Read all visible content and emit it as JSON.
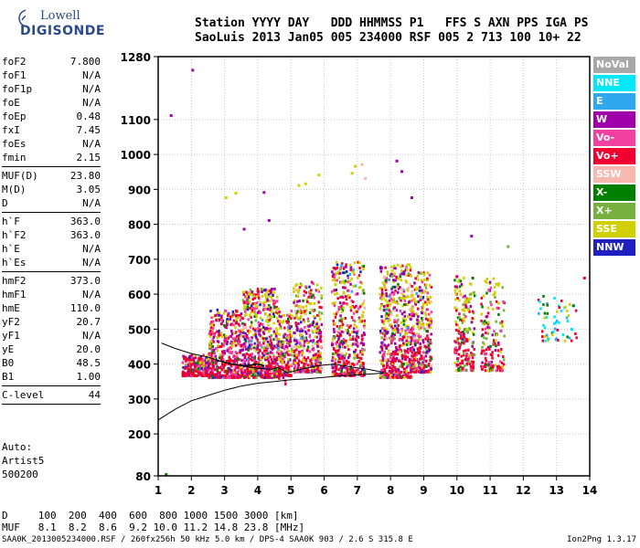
{
  "logo": {
    "line1": "Lowell",
    "line2": "DIGISONDE"
  },
  "header": {
    "labels": "Station YYYY DAY   DDD HHMMSS P1   FFS S AXN PPS IGA PS",
    "values": "SaoLuis 2013 Jan05 005 234000 RSF 005 2 713 100 10+ 22"
  },
  "params": [
    {
      "key": "foF2",
      "value": "7.800"
    },
    {
      "key": "foF1",
      "value": "N/A"
    },
    {
      "key": "foF1p",
      "value": "N/A"
    },
    {
      "key": "foE",
      "value": "N/A"
    },
    {
      "key": "foEp",
      "value": "0.48"
    },
    {
      "key": "fxI",
      "value": "7.45"
    },
    {
      "key": "foEs",
      "value": "N/A"
    },
    {
      "key": "fmin",
      "value": "2.15"
    },
    {
      "sep": true
    },
    {
      "key": "MUF(D)",
      "value": "23.80"
    },
    {
      "key": "M(D)",
      "value": "3.05"
    },
    {
      "key": "D",
      "value": "N/A"
    },
    {
      "sep": true
    },
    {
      "key": "h`F",
      "value": "363.0"
    },
    {
      "key": "h`F2",
      "value": "363.0"
    },
    {
      "key": "h`E",
      "value": "N/A"
    },
    {
      "key": "h`Es",
      "value": "N/A"
    },
    {
      "sep": true
    },
    {
      "key": "hmF2",
      "value": "373.0"
    },
    {
      "key": "hmF1",
      "value": "N/A"
    },
    {
      "key": "hmE",
      "value": "110.0"
    },
    {
      "key": "yF2",
      "value": "20.7"
    },
    {
      "key": "yF1",
      "value": "N/A"
    },
    {
      "key": "yE",
      "value": "20.0"
    },
    {
      "key": "B0",
      "value": "48.5"
    },
    {
      "key": "B1",
      "value": "1.00"
    },
    {
      "sep": true
    },
    {
      "key": "C-level",
      "value": "44"
    },
    {
      "sep": true
    }
  ],
  "auto": {
    "line1": "Auto:",
    "line2": "Artist5",
    "line3": "500200"
  },
  "legend": [
    {
      "label": "NoVal",
      "color": "#a8a8a8"
    },
    {
      "label": "NNE",
      "color": "#00e8f8"
    },
    {
      "label": "E",
      "color": "#30a8f0"
    },
    {
      "label": "W",
      "color": "#a000a8"
    },
    {
      "label": "Vo-",
      "color": "#f040a0"
    },
    {
      "label": "Vo+",
      "color": "#f00030"
    },
    {
      "label": "SSW",
      "color": "#f8b8b0"
    },
    {
      "label": "X-",
      "color": "#008000"
    },
    {
      "label": "X+",
      "color": "#78b040"
    },
    {
      "label": "SSE",
      "color": "#d0d000"
    },
    {
      "label": "NNW",
      "color": "#2020c0"
    }
  ],
  "dtable": {
    "row1": "D     100  200  400  600  800 1000 1500 3000 [km]",
    "row2": "MUF   8.1  8.2  8.6  9.2 10.0 11.2 14.8 23.8 [MHz]"
  },
  "footer": "SAA0K_2013005234000.RSF / 260fx256h 50 kHz 5.0 km / DPS-4 SAA0K 903 / 2.6 S 315.8 E",
  "version": "Ion2Png 1.3.17",
  "chart_data": {
    "type": "scatter",
    "x_ticks": [
      1,
      2,
      3,
      4,
      5,
      6,
      7,
      8,
      9,
      10,
      11,
      12,
      13,
      14
    ],
    "y_ticks": [
      80,
      200,
      300,
      400,
      500,
      600,
      700,
      800,
      900,
      1000,
      1100,
      1280
    ],
    "xlim": [
      1,
      14
    ],
    "ylim": [
      80,
      1280
    ],
    "x_unit": "MHz",
    "y_unit": "km",
    "grid": true,
    "legend_position": "right",
    "clusters": [
      {
        "f": [
          1.7,
          2.5
        ],
        "h": [
          370,
          430
        ],
        "n": 260,
        "mix": "low"
      },
      {
        "f": [
          2.5,
          3.5
        ],
        "h": [
          365,
          560
        ],
        "n": 420,
        "mix": "low"
      },
      {
        "f": [
          3.5,
          4.6
        ],
        "h": [
          365,
          620
        ],
        "n": 620,
        "mix": "main"
      },
      {
        "f": [
          4.6,
          5.0
        ],
        "h": [
          370,
          560
        ],
        "n": 160,
        "mix": "main"
      },
      {
        "f": [
          5.05,
          5.9
        ],
        "h": [
          380,
          640
        ],
        "n": 360,
        "mix": "main"
      },
      {
        "f": [
          6.2,
          7.2
        ],
        "h": [
          370,
          700
        ],
        "n": 460,
        "mix": "main"
      },
      {
        "f": [
          7.65,
          8.6
        ],
        "h": [
          365,
          690
        ],
        "n": 520,
        "mix": "main"
      },
      {
        "f": [
          8.6,
          9.2
        ],
        "h": [
          380,
          670
        ],
        "n": 320,
        "mix": "main"
      },
      {
        "f": [
          9.9,
          10.5
        ],
        "h": [
          385,
          660
        ],
        "n": 200,
        "mix": "high"
      },
      {
        "f": [
          10.7,
          11.4
        ],
        "h": [
          385,
          650
        ],
        "n": 160,
        "mix": "high"
      },
      {
        "f": [
          12.3,
          13.6
        ],
        "h": [
          470,
          600
        ],
        "n": 60,
        "mix": "far"
      },
      {
        "f": [
          4.6,
          4.9
        ],
        "h": [
          330,
          520
        ],
        "n": 12,
        "mix": "main"
      }
    ],
    "sparse_echoes": [
      {
        "f": 1.35,
        "h": 1115,
        "c": "#a000a8"
      },
      {
        "f": 2.0,
        "h": 1245,
        "c": "#a000a8"
      },
      {
        "f": 1.2,
        "h": 88,
        "c": "#008000"
      },
      {
        "f": 3.0,
        "h": 880,
        "c": "#d0d000"
      },
      {
        "f": 3.3,
        "h": 893,
        "c": "#d0d000"
      },
      {
        "f": 3.55,
        "h": 790,
        "c": "#a000a8"
      },
      {
        "f": 4.15,
        "h": 895,
        "c": "#a000a8"
      },
      {
        "f": 4.3,
        "h": 815,
        "c": "#a000a8"
      },
      {
        "f": 5.2,
        "h": 915,
        "c": "#d0d000"
      },
      {
        "f": 5.4,
        "h": 920,
        "c": "#d0d000"
      },
      {
        "f": 5.8,
        "h": 945,
        "c": "#d0d000"
      },
      {
        "f": 6.8,
        "h": 950,
        "c": "#d0d000"
      },
      {
        "f": 6.9,
        "h": 970,
        "c": "#d0d000"
      },
      {
        "f": 7.1,
        "h": 975,
        "c": "#f8b8b0"
      },
      {
        "f": 8.15,
        "h": 985,
        "c": "#a000a8"
      },
      {
        "f": 8.3,
        "h": 955,
        "c": "#a000a8"
      },
      {
        "f": 8.6,
        "h": 880,
        "c": "#a000a8"
      },
      {
        "f": 7.2,
        "h": 935,
        "c": "#f8b8b0"
      },
      {
        "f": 11.5,
        "h": 740,
        "c": "#78b040"
      },
      {
        "f": 10.4,
        "h": 770,
        "c": "#a000a8"
      },
      {
        "f": 13.8,
        "h": 650,
        "c": "#f00030"
      },
      {
        "f": 12.9,
        "h": 520,
        "c": "#00e8f8"
      }
    ],
    "trace_upper": [
      [
        1.1,
        460
      ],
      [
        1.5,
        445
      ],
      [
        2.0,
        430
      ],
      [
        2.5,
        420
      ],
      [
        3.0,
        405
      ],
      [
        3.5,
        395
      ],
      [
        4.0,
        388
      ],
      [
        4.4,
        385
      ],
      [
        4.6,
        390
      ],
      [
        4.9,
        375
      ],
      [
        5.3,
        385
      ],
      [
        5.8,
        395
      ],
      [
        6.3,
        400
      ],
      [
        6.8,
        392
      ],
      [
        7.3,
        385
      ],
      [
        7.7,
        378
      ]
    ],
    "trace_lower": [
      [
        1.0,
        240
      ],
      [
        1.5,
        270
      ],
      [
        2.0,
        295
      ],
      [
        2.5,
        310
      ],
      [
        3.0,
        325
      ],
      [
        3.5,
        337
      ],
      [
        4.0,
        345
      ],
      [
        4.5,
        350
      ],
      [
        5.0,
        355
      ],
      [
        5.5,
        358
      ],
      [
        6.0,
        362
      ],
      [
        6.5,
        366
      ],
      [
        7.0,
        369
      ],
      [
        7.5,
        372
      ],
      [
        7.8,
        375
      ]
    ],
    "trace_dark": [
      [
        2.8,
        410
      ],
      [
        3.2,
        400
      ],
      [
        3.6,
        395
      ],
      [
        4.0,
        400
      ],
      [
        4.2,
        395
      ]
    ]
  }
}
